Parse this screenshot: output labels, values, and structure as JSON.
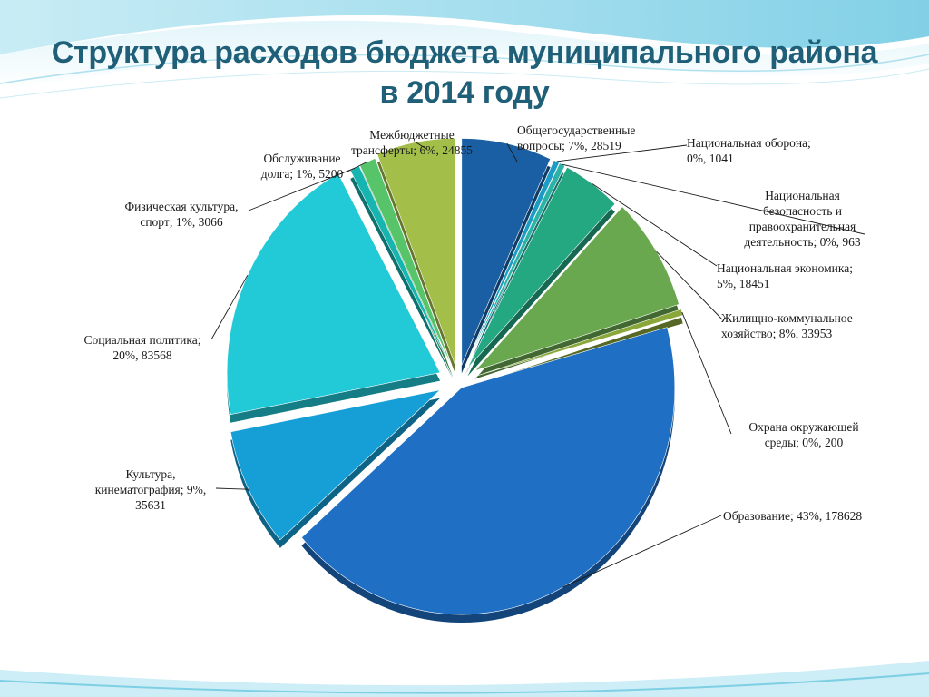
{
  "title_line1": "Структура расходов бюджета муниципального района",
  "title_line2": "в 2014 году",
  "chart_data": {
    "type": "pie",
    "title": "Структура расходов бюджета муниципального района в 2014 году",
    "slices": [
      {
        "name": "Общегосударственные вопросы",
        "percent": "7%",
        "value": 28519,
        "color": "#1a5fa3",
        "label_lines": [
          "Общегосударственные",
          "вопросы; 7%, 28519"
        ]
      },
      {
        "name": "Национальная оборона",
        "percent": "0%",
        "value": 1041,
        "color": "#1b9cc4",
        "label_lines": [
          "Национальная оборона;",
          "0%, 1041"
        ]
      },
      {
        "name": "Национальная безопасность и правоохранительная деятельность",
        "percent": "0%",
        "value": 963,
        "color": "#2ab3a6",
        "label_lines": [
          "Национальная",
          "безопасность и",
          "правоохранительная",
          "деятельность; 0%, 963"
        ]
      },
      {
        "name": "Национальная экономика",
        "percent": "5%",
        "value": 18451,
        "color": "#23a882",
        "label_lines": [
          "Национальная экономика;",
          "5%, 18451"
        ]
      },
      {
        "name": "Жилищно-коммунальное хозяйство",
        "percent": "8%",
        "value": 33953,
        "color": "#6aa84f",
        "label_lines": [
          "Жилищно-коммунальное",
          "хозяйство; 8%, 33953"
        ]
      },
      {
        "name": "Охрана окружающей среды",
        "percent": "0%",
        "value": 200,
        "color": "#8aa83a",
        "label_lines": [
          "Охрана окружающей",
          "среды; 0%, 200"
        ]
      },
      {
        "name": "Образование",
        "percent": "43%",
        "value": 178628,
        "color": "#1f6fc4",
        "label_lines": [
          "Образование; 43%, 178628"
        ]
      },
      {
        "name": "Культура, кинематография",
        "percent": "9%",
        "value": 35631,
        "color": "#159fd6",
        "label_lines": [
          "Культура,",
          "кинематография; 9%,",
          "35631"
        ]
      },
      {
        "name": "Социальная политика",
        "percent": "20%",
        "value": 83568,
        "color": "#22c9d6",
        "label_lines": [
          "Социальная политика;",
          "20%, 83568"
        ]
      },
      {
        "name": "Физическая культура, спорт",
        "percent": "1%",
        "value": 3066,
        "color": "#17b5b0",
        "label_lines": [
          "Физическая культура,",
          "спорт; 1%, 3066"
        ]
      },
      {
        "name": "Обслуживание долга",
        "percent": "1%",
        "value": 5200,
        "color": "#58c46a",
        "label_lines": [
          "Обслуживание",
          "долга; 1%, 5200"
        ]
      },
      {
        "name": "Межбюджетные трансферты",
        "percent": "6%",
        "value": 24855,
        "color": "#a3bf4a",
        "label_lines": [
          "Межбюджетные",
          "трансферты; 6%, 24855"
        ]
      }
    ]
  }
}
